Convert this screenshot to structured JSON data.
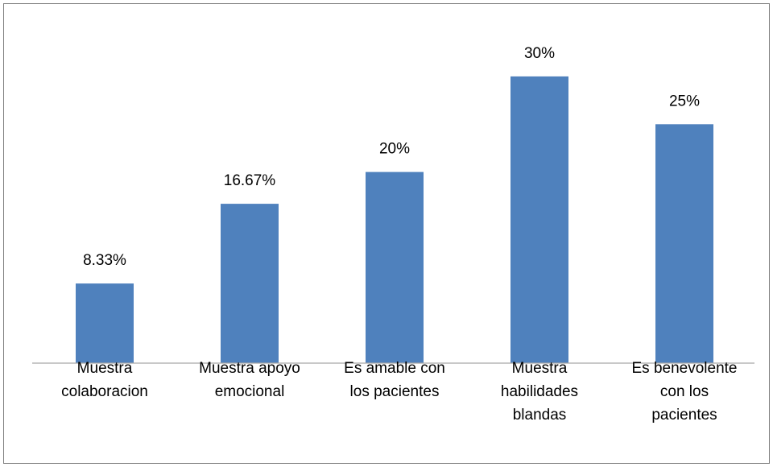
{
  "chart_data": {
    "type": "bar",
    "title": "",
    "xlabel": "",
    "ylabel": "",
    "ylim": [
      0,
      33
    ],
    "grid": false,
    "legend": "none",
    "bar_color": "#4F81BD",
    "axis_color": "#A6A6A6",
    "border_color": "#808080",
    "categories": [
      [
        "Muestra",
        "colaboracion"
      ],
      [
        "Muestra apoyo",
        "emocional"
      ],
      [
        "Es amable con",
        "los pacientes"
      ],
      [
        "Muestra",
        "habilidades",
        "blandas"
      ],
      [
        "Es benevolente",
        "con los",
        "pacientes"
      ]
    ],
    "values": [
      8.33,
      16.67,
      20,
      30,
      25
    ],
    "data_labels": [
      "8.33%",
      "16.67%",
      "20%",
      "30%",
      "25%"
    ]
  }
}
